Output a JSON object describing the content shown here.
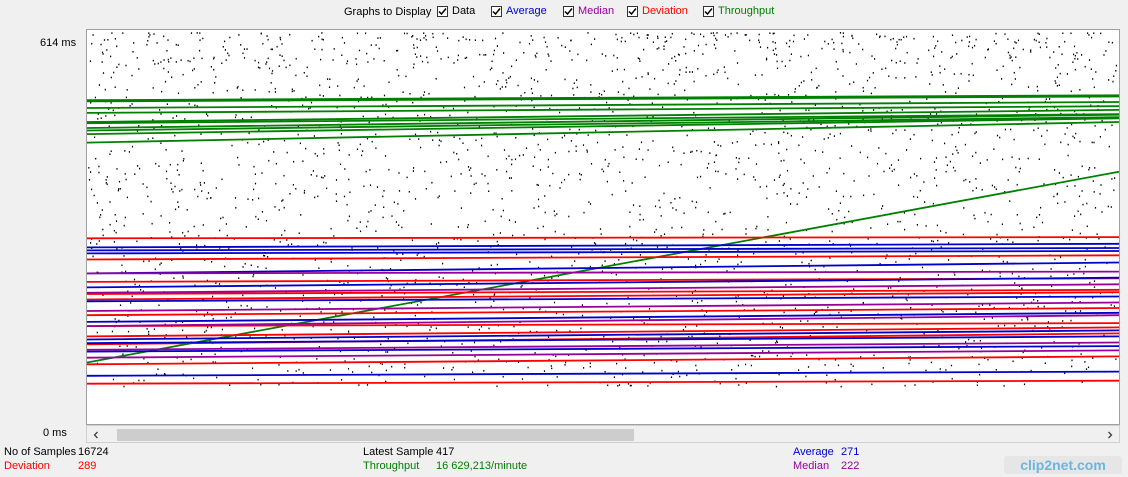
{
  "header": {
    "graphs_label": "Graphs to Display",
    "toggles": [
      {
        "label": "Data",
        "color": "#000000",
        "checked": true
      },
      {
        "label": "Average",
        "color": "#0000cc",
        "checked": true
      },
      {
        "label": "Median",
        "color": "#990099",
        "checked": true
      },
      {
        "label": "Deviation",
        "color": "#ff0000",
        "checked": true
      },
      {
        "label": "Throughput",
        "color": "#008000",
        "checked": true
      }
    ]
  },
  "axis": {
    "max_label": "614  ms",
    "min_label": "0  ms"
  },
  "stats": {
    "samples_label": "No of Samples",
    "samples_value": "16724",
    "deviation_label": "Deviation",
    "deviation_value": "289",
    "latest_label": "Latest Sample",
    "latest_value": "417",
    "throughput_label": "Throughput",
    "throughput_value": "16 629,213/minute",
    "average_label": "Average",
    "average_value": "271",
    "median_label": "Median",
    "median_value": "222"
  },
  "colors": {
    "data": "#000000",
    "average": "#0000cc",
    "median": "#990099",
    "deviation": "#ff0000",
    "throughput": "#008000"
  },
  "chart_data": {
    "type": "line",
    "ylim": [
      0,
      614
    ],
    "ylabel": "ms",
    "series": [
      {
        "name": "Throughput",
        "lines": [
          [
            516,
            524
          ],
          [
            518,
            526
          ],
          [
            505,
            515
          ],
          [
            497,
            508
          ],
          [
            482,
            502
          ],
          [
            480,
            495
          ],
          [
            472,
            494
          ],
          [
            468,
            490
          ],
          [
            462,
            488
          ],
          [
            448,
            482
          ],
          [
            85,
            400
          ]
        ]
      },
      {
        "name": "Deviation",
        "lines": [
          [
            290,
            292
          ],
          [
            255,
            262
          ],
          [
            218,
            224
          ],
          [
            198,
            205
          ],
          [
            189,
            201
          ],
          [
            163,
            175
          ],
          [
            145,
            150
          ],
          [
            128,
            143
          ],
          [
            115,
            133
          ],
          [
            82,
            95
          ],
          [
            50,
            55
          ]
        ]
      },
      {
        "name": "Average",
        "lines": [
          [
            275,
            281
          ],
          [
            270,
            274
          ],
          [
            265,
            269
          ],
          [
            232,
            250
          ],
          [
            209,
            225
          ],
          [
            186,
            194
          ],
          [
            152,
            167
          ],
          [
            123,
            138
          ],
          [
            117,
            128
          ],
          [
            103,
            112
          ],
          [
            63,
            70
          ]
        ]
      },
      {
        "name": "Median",
        "lines": [
          [
            232,
            235
          ],
          [
            200,
            214
          ],
          [
            170,
            184
          ],
          [
            145,
            163
          ],
          [
            106,
            118
          ],
          [
            93,
            105
          ]
        ]
      }
    ],
    "data_points": "scatter"
  },
  "watermark": {
    "text": "clip2net.com"
  }
}
